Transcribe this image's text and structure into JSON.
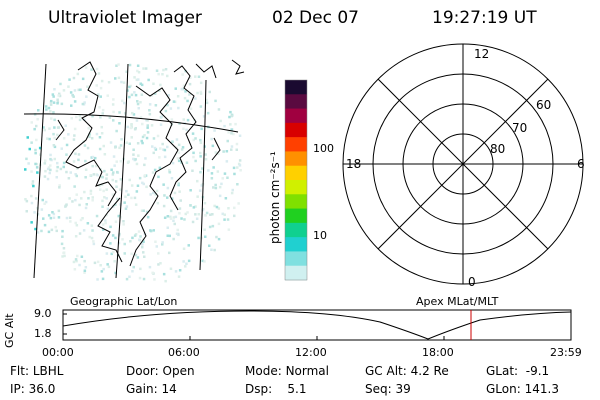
{
  "header": {
    "title": "Ultraviolet Imager",
    "date": "02 Dec 07",
    "time": "19:27:19 UT"
  },
  "colorbar": {
    "unit_label": "photon cm⁻²s⁻¹",
    "ticks": [
      "100",
      "10"
    ],
    "colors": [
      "#1a0a30",
      "#5a0a40",
      "#a00040",
      "#d80000",
      "#ff4000",
      "#ff9000",
      "#ffd000",
      "#d0f000",
      "#80e000",
      "#20d020",
      "#10d090",
      "#20d0d0",
      "#80e0e0",
      "#d0f0f0"
    ]
  },
  "polar": {
    "mlt_labels": [
      "12",
      "6",
      "0",
      "18"
    ],
    "lat_labels": [
      "60",
      "70",
      "80"
    ]
  },
  "timeline": {
    "left_label": "Geographic Lat/Lon",
    "right_label": "Apex MLat/MLT",
    "axis_title": "GC Alt",
    "y_ticks": [
      "9.0",
      "1.8"
    ],
    "x_ticks": [
      "00:00",
      "06:00",
      "12:00",
      "18:00",
      "23:59"
    ],
    "marker_color": "#cc0000"
  },
  "status": {
    "row1": [
      {
        "label": "Flt:",
        "value": "LBHL"
      },
      {
        "label": "Door:",
        "value": "Open"
      },
      {
        "label": "Mode:",
        "value": "Normal"
      },
      {
        "label": "GC Alt:",
        "value": "4.2 Re"
      },
      {
        "label": "GLat:",
        "value": "-9.1"
      }
    ],
    "row2": [
      {
        "label": "IP:",
        "value": "36.0"
      },
      {
        "label": "Gain:",
        "value": "14"
      },
      {
        "label": "Dsp:",
        "value": "5.1"
      },
      {
        "label": "Seq:",
        "value": "39"
      },
      {
        "label": "GLon:",
        "value": "141.3"
      }
    ]
  }
}
